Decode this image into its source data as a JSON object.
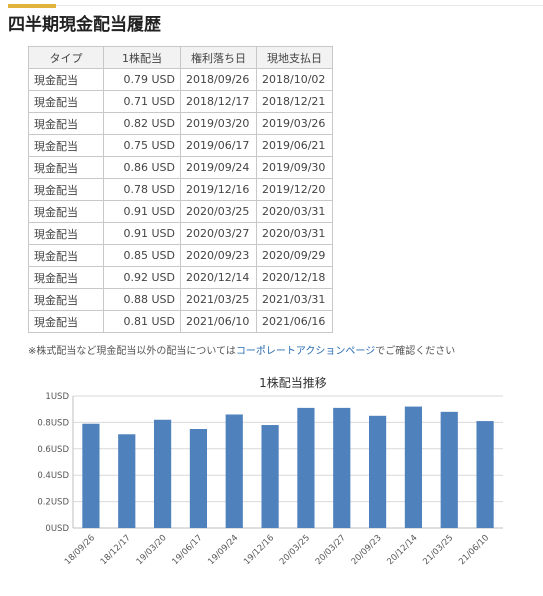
{
  "section_title": "四半期現金配当履歴",
  "table": {
    "headers": [
      "タイプ",
      "1株配当",
      "権利落ち日",
      "現地支払日"
    ],
    "rows": [
      [
        "現金配当",
        "0.79 USD",
        "2018/09/26",
        "2018/10/02"
      ],
      [
        "現金配当",
        "0.71 USD",
        "2018/12/17",
        "2018/12/21"
      ],
      [
        "現金配当",
        "0.82 USD",
        "2019/03/20",
        "2019/03/26"
      ],
      [
        "現金配当",
        "0.75 USD",
        "2019/06/17",
        "2019/06/21"
      ],
      [
        "現金配当",
        "0.86 USD",
        "2019/09/24",
        "2019/09/30"
      ],
      [
        "現金配当",
        "0.78 USD",
        "2019/12/16",
        "2019/12/20"
      ],
      [
        "現金配当",
        "0.91 USD",
        "2020/03/25",
        "2020/03/31"
      ],
      [
        "現金配当",
        "0.91 USD",
        "2020/03/27",
        "2020/03/31"
      ],
      [
        "現金配当",
        "0.85 USD",
        "2020/09/23",
        "2020/09/29"
      ],
      [
        "現金配当",
        "0.92 USD",
        "2020/12/14",
        "2020/12/18"
      ],
      [
        "現金配当",
        "0.88 USD",
        "2021/03/25",
        "2021/03/31"
      ],
      [
        "現金配当",
        "0.81 USD",
        "2021/06/10",
        "2021/06/16"
      ]
    ]
  },
  "note": {
    "prefix": "※株式配当など現金配当以外の配当については",
    "link": "コーポレートアクションページ",
    "suffix": "でご確認ください"
  },
  "colors": {
    "accent": "#e0b33a",
    "bar": "#4f81bd",
    "link": "#2a6cb0"
  },
  "chart_data": {
    "type": "bar",
    "title": "1株配当推移",
    "categories": [
      "18/09/26",
      "18/12/17",
      "19/03/20",
      "19/06/17",
      "19/09/24",
      "19/12/16",
      "20/03/25",
      "20/03/27",
      "20/09/23",
      "20/12/14",
      "21/03/25",
      "21/06/10"
    ],
    "values": [
      0.79,
      0.71,
      0.82,
      0.75,
      0.86,
      0.78,
      0.91,
      0.91,
      0.85,
      0.92,
      0.88,
      0.81
    ],
    "ylim": [
      0,
      1
    ],
    "yticks": [
      "0USD",
      "0.2USD",
      "0.4USD",
      "0.6USD",
      "0.8USD",
      "1USD"
    ],
    "xlabel": "",
    "ylabel": "",
    "grid": true,
    "legend": "none"
  }
}
